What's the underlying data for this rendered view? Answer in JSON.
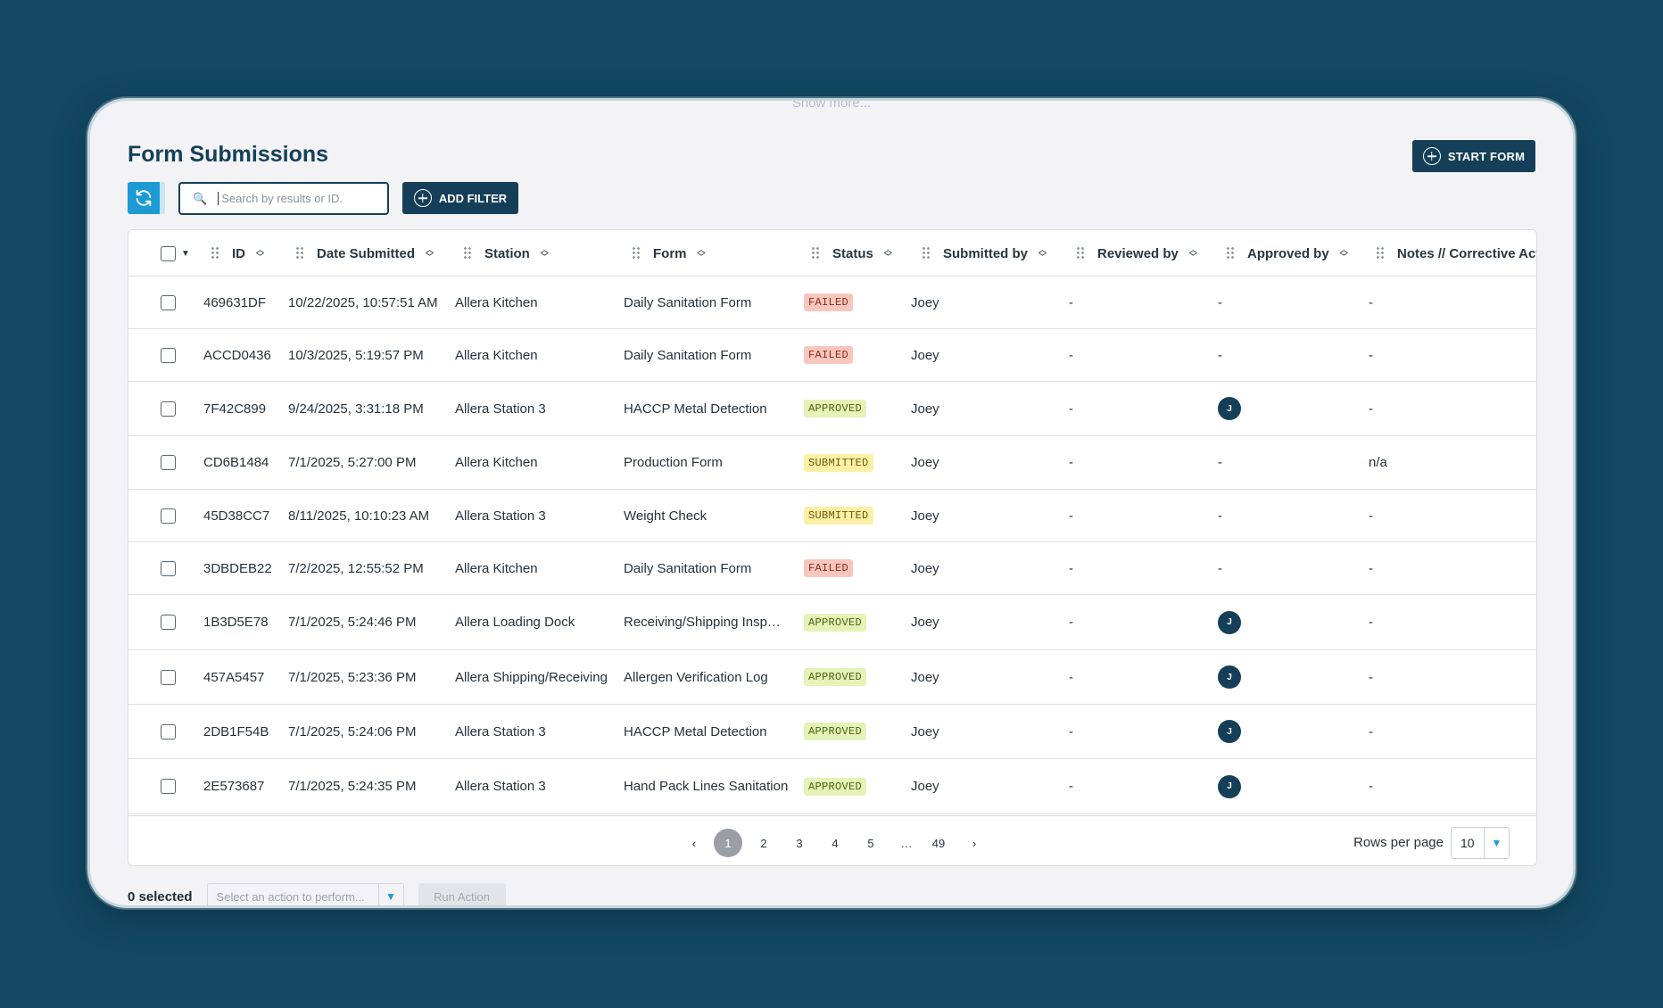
{
  "page": {
    "show_more": "Show more...",
    "title": "Form Submissions",
    "start_form": "START FORM",
    "add_filter": "ADD FILTER",
    "search_placeholder": "Search by results or ID."
  },
  "columns": [
    "ID",
    "Date Submitted",
    "Station",
    "Form",
    "Status",
    "Submitted by",
    "Reviewed by",
    "Approved by",
    "Notes // Corrective Acti"
  ],
  "rows": [
    {
      "id": "469631DF",
      "date": "10/22/2025, 10:57:51 AM",
      "station": "Allera Kitchen",
      "form": "Daily Sanitation Form",
      "status": "FAILED",
      "submitted_by": "Joey",
      "reviewed_by": "-",
      "approved_by": "-",
      "approved_avatar": "",
      "notes": "-"
    },
    {
      "id": "ACCD0436",
      "date": "10/3/2025, 5:19:57 PM",
      "station": "Allera Kitchen",
      "form": "Daily Sanitation Form",
      "status": "FAILED",
      "submitted_by": "Joey",
      "reviewed_by": "-",
      "approved_by": "-",
      "approved_avatar": "",
      "notes": "-"
    },
    {
      "id": "7F42C899",
      "date": "9/24/2025, 3:31:18 PM",
      "station": "Allera Station 3",
      "form": "HACCP Metal Detection",
      "status": "APPROVED",
      "submitted_by": "Joey",
      "reviewed_by": "-",
      "approved_by": "",
      "approved_avatar": "J",
      "notes": "-"
    },
    {
      "id": "CD6B1484",
      "date": "7/1/2025, 5:27:00 PM",
      "station": "Allera Kitchen",
      "form": "Production Form",
      "status": "SUBMITTED",
      "submitted_by": "Joey",
      "reviewed_by": "-",
      "approved_by": "-",
      "approved_avatar": "",
      "notes": "n/a"
    },
    {
      "id": "45D38CC7",
      "date": "8/11/2025, 10:10:23 AM",
      "station": "Allera Station 3",
      "form": "Weight Check",
      "status": "SUBMITTED",
      "submitted_by": "Joey",
      "reviewed_by": "-",
      "approved_by": "-",
      "approved_avatar": "",
      "notes": "-"
    },
    {
      "id": "3DBDEB22",
      "date": "7/2/2025, 12:55:52 PM",
      "station": "Allera Kitchen",
      "form": "Daily Sanitation Form",
      "status": "FAILED",
      "submitted_by": "Joey",
      "reviewed_by": "-",
      "approved_by": "-",
      "approved_avatar": "",
      "notes": "-"
    },
    {
      "id": "1B3D5E78",
      "date": "7/1/2025, 5:24:46 PM",
      "station": "Allera Loading Dock",
      "form": "Receiving/Shipping Insp…",
      "status": "APPROVED",
      "submitted_by": "Joey",
      "reviewed_by": "-",
      "approved_by": "",
      "approved_avatar": "J",
      "notes": "-"
    },
    {
      "id": "457A5457",
      "date": "7/1/2025, 5:23:36 PM",
      "station": "Allera Shipping/Receiving",
      "form": "Allergen Verification Log",
      "status": "APPROVED",
      "submitted_by": "Joey",
      "reviewed_by": "-",
      "approved_by": "",
      "approved_avatar": "J",
      "notes": "-"
    },
    {
      "id": "2DB1F54B",
      "date": "7/1/2025, 5:24:06 PM",
      "station": "Allera Station 3",
      "form": "HACCP Metal Detection",
      "status": "APPROVED",
      "submitted_by": "Joey",
      "reviewed_by": "-",
      "approved_by": "",
      "approved_avatar": "J",
      "notes": "-"
    },
    {
      "id": "2E573687",
      "date": "7/1/2025, 5:24:35 PM",
      "station": "Allera Station 3",
      "form": "Hand Pack Lines Sanitation",
      "status": "APPROVED",
      "submitted_by": "Joey",
      "reviewed_by": "-",
      "approved_by": "",
      "approved_avatar": "J",
      "notes": "-"
    }
  ],
  "pagination": {
    "prev": "‹",
    "pages": [
      "1",
      "2",
      "3",
      "4",
      "5"
    ],
    "ellipsis": "…",
    "last": "49",
    "next": "›",
    "active": "1",
    "rows_per_page_label": "Rows per page",
    "rows_per_page": "10"
  },
  "footer": {
    "selected": "0 selected",
    "action_placeholder": "Select an action to perform...",
    "run_action": "Run Action"
  },
  "colors": {
    "background": "#124863",
    "primary": "#153f59",
    "accent": "#1d9ad6",
    "failed": "#f9c6bd",
    "approved": "#e5f2b8",
    "submitted": "#fbf0a6"
  }
}
